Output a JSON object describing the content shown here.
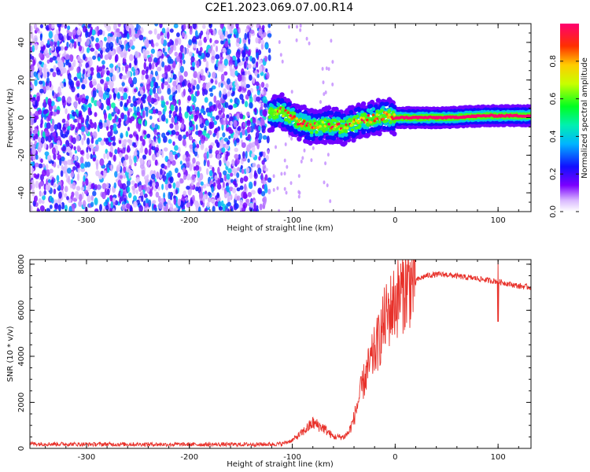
{
  "title": "C2E1.2023.069.07.00.R14",
  "chart_data": [
    {
      "type": "heatmap",
      "title": "C2E1.2023.069.07.00.R14",
      "xlabel": "Height of straight line (km)",
      "ylabel": "Frequency (Hz)",
      "xlim": [
        -355,
        132
      ],
      "ylim": [
        -50,
        50
      ],
      "xticks": [
        -300,
        -200,
        -100,
        0,
        100
      ],
      "yticks": [
        -40,
        -20,
        0,
        20,
        40
      ],
      "colorbar": {
        "label": "Normalized spectral amplitude",
        "range": [
          0.0,
          1.0
        ],
        "ticks": [
          0.0,
          0.2,
          0.4,
          0.6,
          0.8
        ]
      },
      "noise_region": {
        "x_range": [
          -355,
          -122
        ],
        "y_range": [
          -50,
          50
        ],
        "amplitude": [
          0.05,
          0.4
        ]
      },
      "signal_ridge": [
        {
          "x": -122,
          "y": 2
        },
        {
          "x": -110,
          "y": 3
        },
        {
          "x": -95,
          "y": -2
        },
        {
          "x": -80,
          "y": -5
        },
        {
          "x": -65,
          "y": -4
        },
        {
          "x": -50,
          "y": -5
        },
        {
          "x": -35,
          "y": -2
        },
        {
          "x": -20,
          "y": 0
        },
        {
          "x": -10,
          "y": 1
        },
        {
          "x": 0,
          "y": 0
        },
        {
          "x": 50,
          "y": 0
        },
        {
          "x": 90,
          "y": 1
        },
        {
          "x": 132,
          "y": 1
        }
      ],
      "ridge_amplitude": 1.0
    },
    {
      "type": "line",
      "xlabel": "Height of straight line (km)",
      "ylabel": "SNR (10 * v/v)",
      "xlim": [
        -355,
        132
      ],
      "ylim": [
        0,
        8200
      ],
      "xticks": [
        -300,
        -200,
        -100,
        0,
        100
      ],
      "yticks": [
        0,
        2000,
        4000,
        6000,
        8000
      ],
      "color": "#e8312a",
      "series": [
        {
          "x": [
            -355,
            -300,
            -250,
            -200,
            -150,
            -120,
            -110,
            -100,
            -90,
            -80,
            -70,
            -60,
            -50,
            -45,
            -40,
            -35,
            -30,
            -25,
            -20,
            -15,
            -10,
            -5,
            0,
            5,
            10,
            20,
            30,
            40,
            50,
            60,
            70,
            80,
            90,
            100,
            110,
            120,
            132
          ],
          "values": [
            200,
            180,
            180,
            170,
            170,
            180,
            200,
            350,
            700,
            1100,
            900,
            500,
            500,
            700,
            1300,
            2200,
            3000,
            3600,
            4200,
            4800,
            5600,
            6000,
            6400,
            6700,
            7000,
            7300,
            7500,
            7550,
            7550,
            7480,
            7420,
            7380,
            7300,
            7250,
            7150,
            7050,
            7000
          ]
        }
      ]
    }
  ]
}
